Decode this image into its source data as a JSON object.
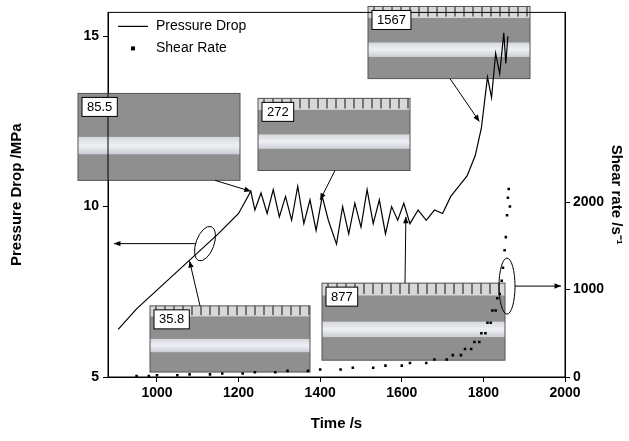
{
  "chart_data": {
    "type": "line",
    "x_label": "Time /s",
    "y_label": "Pressure Drop /MPa",
    "y2_label": "Shear rate /s⁻¹",
    "xlim": [
      880,
      2000
    ],
    "xticks": [
      1000,
      1200,
      1400,
      1600,
      1800,
      2000
    ],
    "ylim": [
      5,
      15.7
    ],
    "yticks": [
      5,
      10,
      15
    ],
    "y2lim": [
      0,
      4170
    ],
    "y2ticks": [
      0,
      1000,
      2000
    ],
    "grid": false,
    "legend": "upper left",
    "series": [
      {
        "name": "Pressure Drop",
        "type": "line",
        "color": "#000000",
        "line_style": "solid",
        "marker": "none",
        "x": [
          905,
          950,
          1000,
          1050,
          1100,
          1150,
          1200,
          1230,
          1240,
          1255,
          1270,
          1285,
          1300,
          1315,
          1330,
          1345,
          1360,
          1375,
          1390,
          1405,
          1420,
          1440,
          1455,
          1470,
          1485,
          1500,
          1515,
          1530,
          1545,
          1560,
          1575,
          1590,
          1605,
          1620,
          1640,
          1660,
          1680,
          1700,
          1720,
          1740,
          1760,
          1780,
          1795,
          1810,
          1820,
          1830,
          1840,
          1850,
          1855,
          1860
        ],
        "values": [
          6.4,
          7.0,
          7.55,
          8.1,
          8.65,
          9.2,
          9.8,
          10.45,
          9.9,
          10.4,
          9.8,
          10.5,
          9.7,
          10.3,
          9.6,
          10.6,
          9.5,
          10.2,
          9.3,
          10.3,
          9.6,
          8.9,
          10.0,
          9.2,
          10.1,
          9.4,
          10.5,
          9.5,
          10.2,
          9.2,
          10.0,
          9.6,
          10.1,
          9.5,
          9.9,
          9.6,
          9.9,
          9.8,
          10.3,
          10.6,
          10.9,
          11.5,
          12.3,
          13.8,
          13.2,
          14.5,
          13.9,
          15.1,
          14.2,
          15.0
        ]
      },
      {
        "name": "Shear Rate",
        "type": "scatter",
        "color": "#000000",
        "marker": "square",
        "axis": "y2",
        "x": [
          950,
          980,
          1000,
          1050,
          1080,
          1130,
          1160,
          1210,
          1240,
          1290,
          1320,
          1370,
          1400,
          1450,
          1480,
          1530,
          1560,
          1600,
          1620,
          1660,
          1680,
          1710,
          1725,
          1745,
          1755,
          1770,
          1778,
          1790,
          1795,
          1805,
          1810,
          1818,
          1822,
          1830,
          1834,
          1840,
          1845,
          1848,
          1852,
          1855,
          1858,
          1860,
          1862,
          1865
        ],
        "values": [
          10,
          10,
          20,
          20,
          30,
          30,
          40,
          40,
          55,
          55,
          70,
          70,
          85,
          85,
          105,
          105,
          130,
          130,
          160,
          160,
          200,
          200,
          250,
          250,
          320,
          320,
          400,
          400,
          500,
          500,
          620,
          620,
          760,
          760,
          900,
          950,
          1100,
          1250,
          1450,
          1600,
          1850,
          2050,
          2150,
          1950
        ]
      }
    ],
    "annotations": [
      {
        "text": "85.5",
        "x": 1230,
        "y": 10.45
      },
      {
        "text": "272",
        "x": 1400,
        "y": 10.2
      },
      {
        "text": "1567",
        "x": 1790,
        "y": 12.5
      },
      {
        "text": "35.8",
        "x": 1080,
        "y": 8.4
      },
      {
        "text": "877",
        "x": 1610,
        "y": 9.7
      }
    ]
  }
}
